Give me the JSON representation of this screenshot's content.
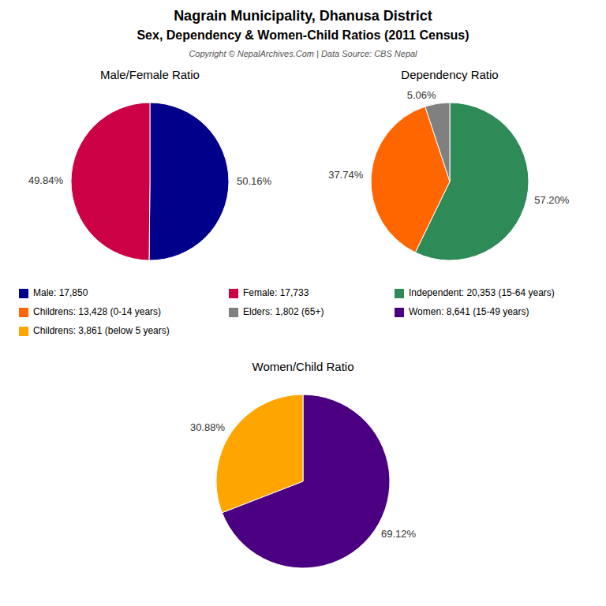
{
  "title": "Nagrain Municipality, Dhanusa District",
  "subtitle": "Sex, Dependency & Women-Child Ratios (2011 Census)",
  "annotations": [
    "Copyright © NepalArchives.Com | Data Source: CBS Nepal"
  ],
  "chart_data": [
    {
      "type": "pie",
      "title": "Male/Female Ratio",
      "categories": [
        "Male: 17,850",
        "Female: 17,733"
      ],
      "values": [
        50.16,
        49.84
      ],
      "value_labels": [
        "50.16%",
        "49.84%"
      ],
      "colors": [
        "#00008B",
        "#CC0044"
      ],
      "data_labels": true,
      "legend": "bottom"
    },
    {
      "type": "pie",
      "title": "Dependency Ratio",
      "categories": [
        "Independent: 20,353 (15-64 years)",
        "Childrens: 13,428 (0-14 years)",
        "Elders: 1,802 (65+)"
      ],
      "values": [
        57.2,
        37.74,
        5.06
      ],
      "value_labels": [
        "57.20%",
        "37.74%",
        "5.06%"
      ],
      "colors": [
        "#2E8B57",
        "#FF6600",
        "#808080"
      ],
      "data_labels": true,
      "legend": "bottom"
    },
    {
      "type": "pie",
      "title": "Women/Child Ratio",
      "categories": [
        "Women: 8,641 (15-49 years)",
        "Childrens: 3,861 (below 5 years)"
      ],
      "values": [
        69.12,
        30.88
      ],
      "value_labels": [
        "69.12%",
        "30.88%"
      ],
      "colors": [
        "#4B0082",
        "#FFA500"
      ],
      "data_labels": true,
      "legend": "bottom"
    }
  ]
}
